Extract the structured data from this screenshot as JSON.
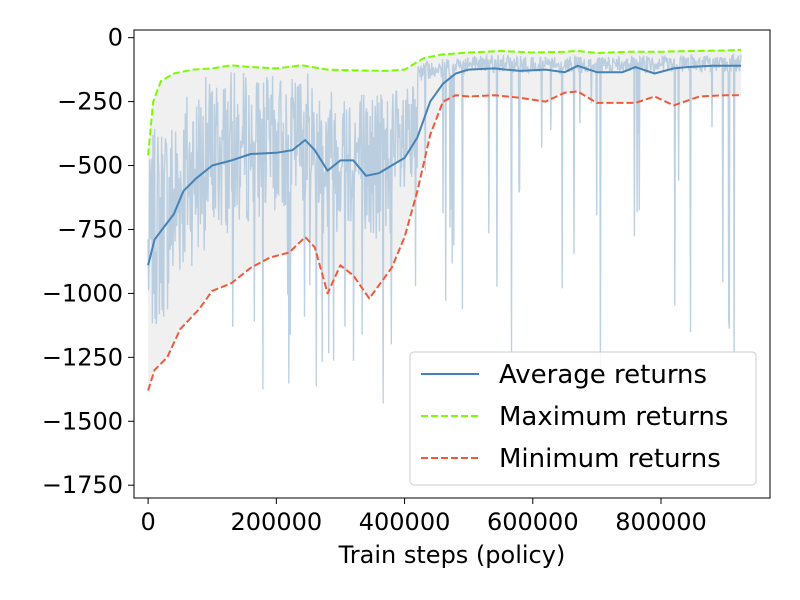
{
  "chart_data": {
    "type": "line",
    "xlabel": "Train steps (policy)",
    "ylabel": "",
    "title": "",
    "xlim": [
      -22000,
      970000
    ],
    "ylim": [
      -1800,
      30
    ],
    "xticks": [
      0,
      200000,
      400000,
      600000,
      800000
    ],
    "xtick_labels": [
      "0",
      "200000",
      "400000",
      "600000",
      "800000"
    ],
    "yticks": [
      0,
      -250,
      -500,
      -750,
      -1000,
      -1250,
      -1500,
      -1750
    ],
    "ytick_labels": [
      "0",
      "−250",
      "−500",
      "−750",
      "−1000",
      "−1250",
      "−1500",
      "−1750"
    ],
    "grid": false,
    "legend_position": "lower-right",
    "series": [
      {
        "name": "Average returns",
        "color": "#4682b4",
        "style": "solid",
        "x": [
          0,
          10000,
          25000,
          40000,
          55000,
          75000,
          100000,
          130000,
          160000,
          200000,
          225000,
          245000,
          260000,
          280000,
          300000,
          320000,
          340000,
          360000,
          380000,
          400000,
          420000,
          440000,
          460000,
          480000,
          500000,
          540000,
          580000,
          620000,
          650000,
          670000,
          700000,
          740000,
          760000,
          790000,
          820000,
          840000,
          880000,
          925000
        ],
        "values": [
          -890,
          -790,
          -740,
          -690,
          -600,
          -550,
          -500,
          -480,
          -455,
          -450,
          -440,
          -400,
          -440,
          -520,
          -480,
          -480,
          -540,
          -530,
          -500,
          -470,
          -390,
          -250,
          -180,
          -140,
          -125,
          -120,
          -130,
          -125,
          -135,
          -110,
          -135,
          -135,
          -115,
          -140,
          -120,
          -115,
          -110,
          -110
        ]
      },
      {
        "name": "Maximum returns",
        "color": "#7cfc00",
        "style": "dashed",
        "x": [
          0,
          8000,
          20000,
          40000,
          70000,
          100000,
          130000,
          160000,
          200000,
          240000,
          280000,
          330000,
          370000,
          400000,
          430000,
          460000,
          500000,
          550000,
          600000,
          650000,
          670000,
          700000,
          750000,
          800000,
          850000,
          900000,
          925000
        ],
        "values": [
          -460,
          -250,
          -170,
          -140,
          -125,
          -120,
          -108,
          -115,
          -120,
          -108,
          -125,
          -128,
          -130,
          -125,
          -80,
          -65,
          -58,
          -52,
          -58,
          -55,
          -52,
          -60,
          -55,
          -55,
          -52,
          -50,
          -48
        ]
      },
      {
        "name": "Minimum returns",
        "color": "#f05a3c",
        "style": "dashed",
        "x": [
          0,
          10000,
          30000,
          50000,
          80000,
          100000,
          130000,
          160000,
          190000,
          220000,
          245000,
          260000,
          280000,
          300000,
          320000,
          345000,
          380000,
          400000,
          420000,
          440000,
          460000,
          480000,
          500000,
          540000,
          580000,
          620000,
          650000,
          670000,
          700000,
          760000,
          790000,
          820000,
          860000,
          900000,
          925000
        ],
        "values": [
          -1380,
          -1300,
          -1250,
          -1140,
          -1060,
          -990,
          -960,
          -900,
          -860,
          -840,
          -780,
          -820,
          -1000,
          -890,
          -930,
          -1020,
          -900,
          -780,
          -600,
          -380,
          -250,
          -225,
          -230,
          -225,
          -235,
          -250,
          -215,
          -210,
          -255,
          -255,
          -230,
          -265,
          -230,
          -225,
          -225
        ]
      }
    ],
    "raw_returns": {
      "color": "#adc6dc",
      "fill_color": "#f0f0f0",
      "x_range": [
        0,
        925000
      ]
    }
  }
}
